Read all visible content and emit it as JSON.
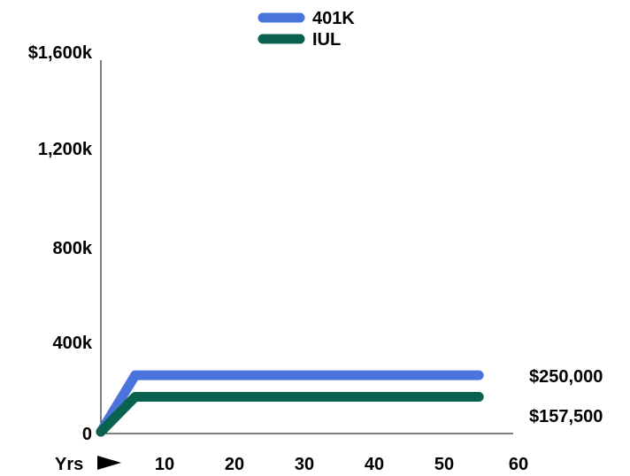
{
  "chart_data": {
    "type": "line",
    "title": "",
    "xlabel": "Yrs",
    "ylabel": "",
    "xlim": [
      0,
      60
    ],
    "ylim": [
      0,
      1600000
    ],
    "x_ticks": [
      10,
      20,
      30,
      40,
      50,
      60
    ],
    "x_tick_labels": [
      "10",
      "20",
      "30",
      "40",
      "50",
      "60"
    ],
    "y_ticks": [
      0,
      400000,
      800000,
      1200000,
      1600000
    ],
    "y_tick_labels": [
      "0",
      "400k",
      "800k",
      "1,200k",
      "$1,600k"
    ],
    "grid": false,
    "legend_position": "top-center",
    "series": [
      {
        "name": "401K",
        "color": "#4a74db",
        "x": [
          0,
          5,
          55
        ],
        "y": [
          0,
          250000,
          250000
        ],
        "end_label": "$250,000"
      },
      {
        "name": "IUL",
        "color": "#09614f",
        "x": [
          0,
          5,
          55
        ],
        "y": [
          0,
          157500,
          157500
        ],
        "end_label": "$157,500"
      }
    ]
  },
  "icons": {
    "x_axis_arrow": "right-arrow-icon"
  }
}
